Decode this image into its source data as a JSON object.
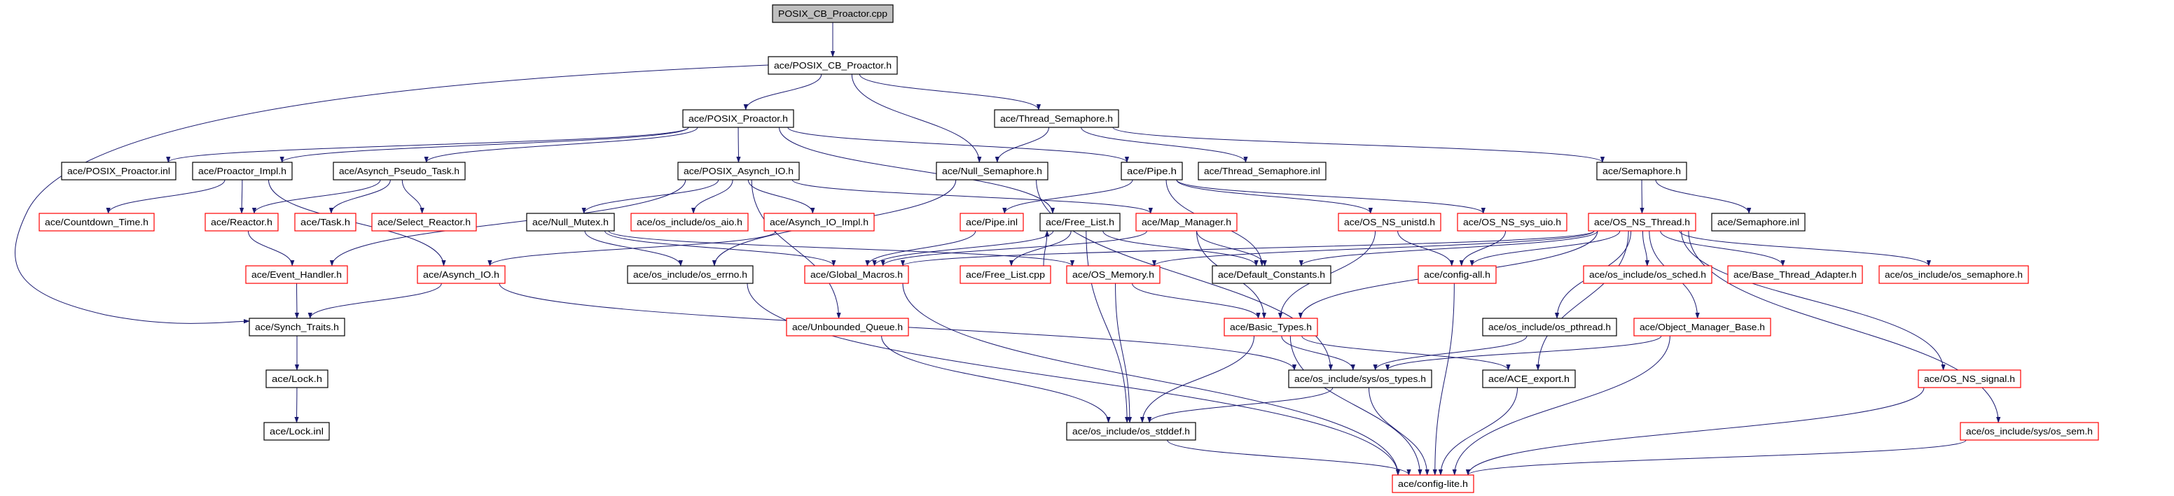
{
  "diagram": {
    "type": "include-dependency-graph",
    "colors": {
      "edge": "#191970",
      "border_normal": "#000000",
      "border_truncated": "#ff0000",
      "root_fill": "#bfbfbf",
      "node_fill": "#ffffff"
    },
    "nodes": [
      {
        "id": "cpp",
        "label": "POSIX_CB_Proactor.cpp",
        "border": "normal",
        "root": true
      },
      {
        "id": "cbh",
        "label": "ace/POSIX_CB_Proactor.h",
        "border": "normal"
      },
      {
        "id": "pph",
        "label": "ace/POSIX_Proactor.h",
        "border": "normal"
      },
      {
        "id": "tsh",
        "label": "ace/Thread_Semaphore.h",
        "border": "normal"
      },
      {
        "id": "ppinl",
        "label": "ace/POSIX_Proactor.inl",
        "border": "normal"
      },
      {
        "id": "pih",
        "label": "ace/Proactor_Impl.h",
        "border": "normal"
      },
      {
        "id": "apt",
        "label": "ace/Asynch_Pseudo_Task.h",
        "border": "normal"
      },
      {
        "id": "paio",
        "label": "ace/POSIX_Asynch_IO.h",
        "border": "normal"
      },
      {
        "id": "nsem",
        "label": "ace/Null_Semaphore.h",
        "border": "normal"
      },
      {
        "id": "pipe",
        "label": "ace/Pipe.h",
        "border": "normal"
      },
      {
        "id": "tsinl",
        "label": "ace/Thread_Semaphore.inl",
        "border": "normal"
      },
      {
        "id": "sem",
        "label": "ace/Semaphore.h",
        "border": "normal"
      },
      {
        "id": "cdt",
        "label": "ace/Countdown_Time.h",
        "border": "truncated"
      },
      {
        "id": "reactor",
        "label": "ace/Reactor.h",
        "border": "truncated"
      },
      {
        "id": "task",
        "label": "ace/Task.h",
        "border": "truncated"
      },
      {
        "id": "selr",
        "label": "ace/Select_Reactor.h",
        "border": "truncated"
      },
      {
        "id": "nmutex",
        "label": "ace/Null_Mutex.h",
        "border": "normal"
      },
      {
        "id": "osaio",
        "label": "ace/os_include/os_aio.h",
        "border": "truncated"
      },
      {
        "id": "aioimpl",
        "label": "ace/Asynch_IO_Impl.h",
        "border": "truncated"
      },
      {
        "id": "pipeinl",
        "label": "ace/Pipe.inl",
        "border": "truncated"
      },
      {
        "id": "flh",
        "label": "ace/Free_List.h",
        "border": "normal"
      },
      {
        "id": "mapm",
        "label": "ace/Map_Manager.h",
        "border": "truncated"
      },
      {
        "id": "unistd",
        "label": "ace/OS_NS_unistd.h",
        "border": "truncated"
      },
      {
        "id": "uio",
        "label": "ace/OS_NS_sys_uio.h",
        "border": "truncated"
      },
      {
        "id": "osthr",
        "label": "ace/OS_NS_Thread.h",
        "border": "truncated"
      },
      {
        "id": "seminl",
        "label": "ace/Semaphore.inl",
        "border": "normal"
      },
      {
        "id": "evh",
        "label": "ace/Event_Handler.h",
        "border": "truncated"
      },
      {
        "id": "aio",
        "label": "ace/Asynch_IO.h",
        "border": "truncated"
      },
      {
        "id": "errno",
        "label": "ace/os_include/os_errno.h",
        "border": "normal"
      },
      {
        "id": "gm",
        "label": "ace/Global_Macros.h",
        "border": "truncated"
      },
      {
        "id": "flcpp",
        "label": "ace/Free_List.cpp",
        "border": "truncated"
      },
      {
        "id": "osmem",
        "label": "ace/OS_Memory.h",
        "border": "truncated"
      },
      {
        "id": "defc",
        "label": "ace/Default_Constants.h",
        "border": "normal"
      },
      {
        "id": "cfgall",
        "label": "ace/config-all.h",
        "border": "truncated"
      },
      {
        "id": "sched",
        "label": "ace/os_include/os_sched.h",
        "border": "truncated"
      },
      {
        "id": "bta",
        "label": "ace/Base_Thread_Adapter.h",
        "border": "truncated"
      },
      {
        "id": "ossemaphore",
        "label": "ace/os_include/os_semaphore.h",
        "border": "truncated"
      },
      {
        "id": "synch",
        "label": "ace/Synch_Traits.h",
        "border": "normal"
      },
      {
        "id": "ubq",
        "label": "ace/Unbounded_Queue.h",
        "border": "truncated"
      },
      {
        "id": "bt",
        "label": "ace/Basic_Types.h",
        "border": "truncated"
      },
      {
        "id": "pthread",
        "label": "ace/os_include/os_pthread.h",
        "border": "normal"
      },
      {
        "id": "omb",
        "label": "ace/Object_Manager_Base.h",
        "border": "truncated"
      },
      {
        "id": "lock",
        "label": "ace/Lock.h",
        "border": "normal"
      },
      {
        "id": "types",
        "label": "ace/os_include/sys/os_types.h",
        "border": "normal"
      },
      {
        "id": "export",
        "label": "ace/ACE_export.h",
        "border": "normal"
      },
      {
        "id": "signal",
        "label": "ace/OS_NS_signal.h",
        "border": "truncated"
      },
      {
        "id": "lockinl",
        "label": "ace/Lock.inl",
        "border": "normal"
      },
      {
        "id": "stddef",
        "label": "ace/os_include/os_stddef.h",
        "border": "normal"
      },
      {
        "id": "ossem",
        "label": "ace/os_include/sys/os_sem.h",
        "border": "truncated"
      },
      {
        "id": "cfglite",
        "label": "ace/config-lite.h",
        "border": "truncated"
      }
    ],
    "edges": [
      [
        "cpp",
        "cbh"
      ],
      [
        "cbh",
        "pph"
      ],
      [
        "cbh",
        "nsem"
      ],
      [
        "cbh",
        "tsh"
      ],
      [
        "cbh",
        "synch"
      ],
      [
        "pph",
        "ppinl"
      ],
      [
        "pph",
        "pih"
      ],
      [
        "pph",
        "apt"
      ],
      [
        "pph",
        "paio"
      ],
      [
        "pph",
        "pipe"
      ],
      [
        "pph",
        "flh"
      ],
      [
        "pih",
        "cdt"
      ],
      [
        "pih",
        "reactor"
      ],
      [
        "pih",
        "aio"
      ],
      [
        "apt",
        "reactor"
      ],
      [
        "apt",
        "task"
      ],
      [
        "apt",
        "selr"
      ],
      [
        "reactor",
        "evh"
      ],
      [
        "paio",
        "nmutex"
      ],
      [
        "paio",
        "osaio"
      ],
      [
        "paio",
        "aioimpl"
      ],
      [
        "paio",
        "evh"
      ],
      [
        "paio",
        "mapm"
      ],
      [
        "paio",
        "ubq"
      ],
      [
        "aioimpl",
        "aio"
      ],
      [
        "nmutex",
        "errno"
      ],
      [
        "nmutex",
        "gm"
      ],
      [
        "nmutex",
        "osmem"
      ],
      [
        "aio",
        "synch"
      ],
      [
        "aio",
        "types"
      ],
      [
        "evh",
        "synch"
      ],
      [
        "synch",
        "lock"
      ],
      [
        "lock",
        "lockinl"
      ],
      [
        "nsem",
        "errno"
      ],
      [
        "nsem",
        "types"
      ],
      [
        "tsh",
        "nsem"
      ],
      [
        "tsh",
        "tsinl"
      ],
      [
        "tsh",
        "sem"
      ],
      [
        "pipe",
        "pipeinl"
      ],
      [
        "pipe",
        "defc"
      ],
      [
        "pipe",
        "unistd"
      ],
      [
        "pipe",
        "uio"
      ],
      [
        "pipeinl",
        "gm"
      ],
      [
        "flh",
        "flcpp"
      ],
      [
        "flcpp",
        "flh"
      ],
      [
        "flh",
        "gm"
      ],
      [
        "flh",
        "defc"
      ],
      [
        "flh",
        "stddef"
      ],
      [
        "mapm",
        "gm"
      ],
      [
        "mapm",
        "defc"
      ],
      [
        "mapm",
        "bt"
      ],
      [
        "sem",
        "osthr"
      ],
      [
        "sem",
        "seminl"
      ],
      [
        "unistd",
        "cfgall"
      ],
      [
        "unistd",
        "bt"
      ],
      [
        "uio",
        "cfgall"
      ],
      [
        "osthr",
        "gm"
      ],
      [
        "osthr",
        "defc"
      ],
      [
        "osthr",
        "osmem"
      ],
      [
        "osthr",
        "cfgall"
      ],
      [
        "osthr",
        "bt"
      ],
      [
        "osthr",
        "pthread"
      ],
      [
        "osthr",
        "sched"
      ],
      [
        "osthr",
        "bta"
      ],
      [
        "osthr",
        "ossemaphore"
      ],
      [
        "osthr",
        "omb"
      ],
      [
        "osthr",
        "export"
      ],
      [
        "osthr",
        "signal"
      ],
      [
        "osthr",
        "ossem"
      ],
      [
        "osmem",
        "stddef"
      ],
      [
        "osmem",
        "bt"
      ],
      [
        "gm",
        "cfglite"
      ],
      [
        "errno",
        "cfglite"
      ],
      [
        "ubq",
        "stddef"
      ],
      [
        "bt",
        "stddef"
      ],
      [
        "bt",
        "types"
      ],
      [
        "bt",
        "cfglite"
      ],
      [
        "bt",
        "export"
      ],
      [
        "types",
        "stddef"
      ],
      [
        "types",
        "cfglite"
      ],
      [
        "stddef",
        "cfglite"
      ],
      [
        "cfgall",
        "cfglite"
      ],
      [
        "pthread",
        "types"
      ],
      [
        "omb",
        "types"
      ],
      [
        "omb",
        "cfglite"
      ],
      [
        "export",
        "cfglite"
      ],
      [
        "signal",
        "cfglite"
      ],
      [
        "ossem",
        "cfglite"
      ]
    ]
  }
}
